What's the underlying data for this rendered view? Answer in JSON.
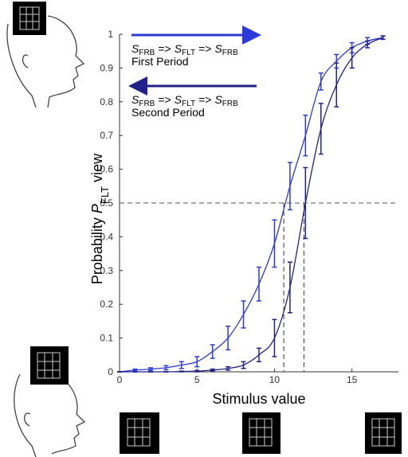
{
  "chart_data": {
    "type": "line",
    "xlabel": "Stimulus value",
    "ylabel_parts": [
      "Probability",
      "P",
      "FLT",
      "view"
    ],
    "x": [
      0,
      1,
      2,
      3,
      4,
      5,
      6,
      7,
      8,
      9,
      10,
      11,
      12,
      13,
      14,
      15,
      16,
      17
    ],
    "series": [
      {
        "name": "First Period",
        "color": "#2b3ad8",
        "direction": "right",
        "sequence": [
          "S",
          "FRB",
          "=>",
          "S",
          "FLT",
          "=>",
          "S",
          "FRB"
        ],
        "values": [
          0.0,
          0.005,
          0.008,
          0.012,
          0.02,
          0.03,
          0.06,
          0.1,
          0.17,
          0.26,
          0.38,
          0.55,
          0.7,
          0.86,
          0.92,
          0.96,
          0.98,
          0.99
        ],
        "errors": [
          0.0,
          0.003,
          0.004,
          0.006,
          0.01,
          0.015,
          0.02,
          0.035,
          0.04,
          0.05,
          0.07,
          0.07,
          0.06,
          0.025,
          0.02,
          0.015,
          0.01,
          0.005
        ]
      },
      {
        "name": "Second Period",
        "color": "#22228a",
        "direction": "left",
        "sequence": [
          "S",
          "FRB",
          "=>",
          "S",
          "FLT",
          "=>",
          "S",
          "FRB"
        ],
        "values": [
          0.0,
          0.0,
          0.0,
          0.0,
          0.001,
          0.002,
          0.005,
          0.01,
          0.02,
          0.05,
          0.1,
          0.25,
          0.5,
          0.72,
          0.85,
          0.93,
          0.97,
          0.99
        ],
        "errors": [
          0.0,
          0.0,
          0.0,
          0.0,
          0.001,
          0.002,
          0.003,
          0.005,
          0.01,
          0.02,
          0.055,
          0.075,
          0.105,
          0.075,
          0.065,
          0.03,
          0.01,
          0.005
        ]
      }
    ],
    "reference_lines": {
      "y": 0.5,
      "x": [
        10.6,
        11.9
      ]
    },
    "xlim": [
      0,
      18
    ],
    "xticks": [
      0,
      5,
      10,
      15
    ],
    "ylim": [
      0,
      1
    ],
    "yticks": [
      0,
      0.1,
      0.2,
      0.3,
      0.4,
      0.5,
      0.6,
      0.7,
      0.8,
      0.9,
      1
    ]
  }
}
